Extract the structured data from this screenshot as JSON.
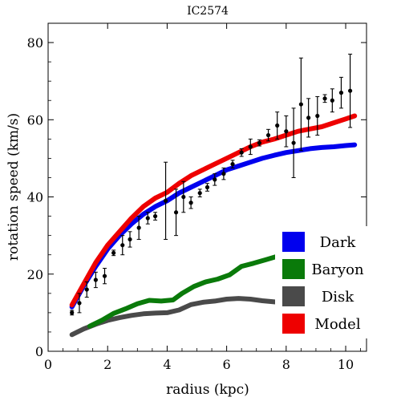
{
  "chart_data": {
    "type": "line",
    "title": "IC2574",
    "xlabel": "radius (kpc)",
    "ylabel": "rotation speed (km/s)",
    "xlim": [
      0,
      10.7
    ],
    "ylim": [
      0,
      85
    ],
    "xticks": [
      0,
      2,
      4,
      6,
      8,
      10
    ],
    "yticks": [
      0,
      20,
      40,
      60,
      80
    ],
    "legend_position": "bottom-right",
    "series": [
      {
        "name": "Dark",
        "color": "#0000ee",
        "points": [
          [
            0.8,
            11.5
          ],
          [
            1.2,
            17
          ],
          [
            1.6,
            22
          ],
          [
            2,
            26.5
          ],
          [
            2.4,
            30
          ],
          [
            2.8,
            33
          ],
          [
            3.2,
            35.5
          ],
          [
            3.6,
            37.5
          ],
          [
            4,
            39
          ],
          [
            4.4,
            41
          ],
          [
            4.8,
            42.5
          ],
          [
            5.2,
            44
          ],
          [
            5.6,
            45.5
          ],
          [
            6,
            47
          ],
          [
            6.4,
            48
          ],
          [
            6.8,
            49
          ],
          [
            7.2,
            50
          ],
          [
            7.6,
            50.8
          ],
          [
            8,
            51.5
          ],
          [
            8.4,
            52
          ],
          [
            8.8,
            52.5
          ],
          [
            9.2,
            52.8
          ],
          [
            9.6,
            53
          ],
          [
            10,
            53.3
          ],
          [
            10.3,
            53.5
          ]
        ]
      },
      {
        "name": "Baryon",
        "color": "#0a7a0a",
        "points": [
          [
            1.4,
            6.5
          ],
          [
            1.8,
            8
          ],
          [
            2.2,
            9.8
          ],
          [
            2.6,
            11
          ],
          [
            3,
            12.3
          ],
          [
            3.4,
            13.2
          ],
          [
            3.8,
            13
          ],
          [
            4.2,
            13.3
          ],
          [
            4.5,
            15
          ],
          [
            4.9,
            16.8
          ],
          [
            5.3,
            18
          ],
          [
            5.7,
            18.7
          ],
          [
            6.1,
            19.8
          ],
          [
            6.5,
            22
          ],
          [
            6.9,
            22.8
          ],
          [
            7.3,
            23.7
          ],
          [
            7.7,
            24.6
          ],
          [
            8.1,
            25.5
          ],
          [
            8.5,
            26.3
          ],
          [
            8.9,
            27
          ],
          [
            9.3,
            27.7
          ],
          [
            9.7,
            28.3
          ],
          [
            10.3,
            29.5
          ]
        ]
      },
      {
        "name": "Disk",
        "color": "#4a4a4a",
        "points": [
          [
            0.8,
            4.3
          ],
          [
            1.2,
            5.8
          ],
          [
            1.6,
            7
          ],
          [
            2,
            8
          ],
          [
            2.4,
            8.7
          ],
          [
            2.8,
            9.3
          ],
          [
            3.2,
            9.7
          ],
          [
            3.6,
            9.9
          ],
          [
            4,
            10
          ],
          [
            4.4,
            10.7
          ],
          [
            4.8,
            12.1
          ],
          [
            5.2,
            12.7
          ],
          [
            5.6,
            13
          ],
          [
            6,
            13.5
          ],
          [
            6.4,
            13.7
          ],
          [
            6.8,
            13.5
          ],
          [
            7.2,
            13.1
          ],
          [
            7.6,
            12.8
          ],
          [
            8,
            12.5
          ],
          [
            8.4,
            12.2
          ],
          [
            8.8,
            12
          ],
          [
            9.2,
            11.8
          ],
          [
            9.6,
            11.7
          ],
          [
            10,
            11.6
          ],
          [
            10.3,
            11.5
          ]
        ]
      },
      {
        "name": "Model",
        "color": "#ee0000",
        "points": [
          [
            0.8,
            12
          ],
          [
            1.2,
            17.5
          ],
          [
            1.6,
            23
          ],
          [
            2,
            27.5
          ],
          [
            2.4,
            31
          ],
          [
            2.8,
            34.5
          ],
          [
            3.2,
            37.5
          ],
          [
            3.6,
            39.7
          ],
          [
            4,
            41.2
          ],
          [
            4.4,
            43.5
          ],
          [
            4.8,
            45.5
          ],
          [
            5.2,
            47
          ],
          [
            5.6,
            48.5
          ],
          [
            6,
            50
          ],
          [
            6.4,
            51.5
          ],
          [
            6.8,
            53
          ],
          [
            7.2,
            54.2
          ],
          [
            7.6,
            55
          ],
          [
            8,
            56
          ],
          [
            8.4,
            57
          ],
          [
            8.8,
            57.6
          ],
          [
            9.2,
            58.2
          ],
          [
            9.6,
            59.2
          ],
          [
            10,
            60.2
          ],
          [
            10.3,
            61
          ]
        ]
      }
    ],
    "observations": {
      "name": "data",
      "color": "#000000",
      "points": [
        {
          "x": 0.8,
          "y": 10,
          "err": 0.6
        },
        {
          "x": 1.05,
          "y": 12.5,
          "err": 2.5
        },
        {
          "x": 1.3,
          "y": 16,
          "err": 2
        },
        {
          "x": 1.6,
          "y": 18.5,
          "err": 2
        },
        {
          "x": 1.9,
          "y": 19.5,
          "err": 2
        },
        {
          "x": 2.2,
          "y": 25.5,
          "err": 0.7
        },
        {
          "x": 2.5,
          "y": 27.5,
          "err": 2.5
        },
        {
          "x": 2.75,
          "y": 29,
          "err": 2
        },
        {
          "x": 3.05,
          "y": 32,
          "err": 3
        },
        {
          "x": 3.35,
          "y": 34.5,
          "err": 1.5
        },
        {
          "x": 3.6,
          "y": 35,
          "err": 1
        },
        {
          "x": 3.95,
          "y": 39,
          "err": 10
        },
        {
          "x": 4.3,
          "y": 36,
          "err": 6
        },
        {
          "x": 4.55,
          "y": 40,
          "err": 4
        },
        {
          "x": 4.8,
          "y": 38.5,
          "err": 1.5
        },
        {
          "x": 5.1,
          "y": 41,
          "err": 1
        },
        {
          "x": 5.35,
          "y": 42.5,
          "err": 1
        },
        {
          "x": 5.6,
          "y": 44.5,
          "err": 1.5
        },
        {
          "x": 5.9,
          "y": 46,
          "err": 1.5
        },
        {
          "x": 6.2,
          "y": 48.5,
          "err": 1
        },
        {
          "x": 6.5,
          "y": 51.5,
          "err": 1
        },
        {
          "x": 6.8,
          "y": 53,
          "err": 2
        },
        {
          "x": 7.1,
          "y": 54,
          "err": 0.8
        },
        {
          "x": 7.4,
          "y": 56,
          "err": 1.5
        },
        {
          "x": 7.7,
          "y": 58.5,
          "err": 3.5
        },
        {
          "x": 8.0,
          "y": 57,
          "err": 4
        },
        {
          "x": 8.25,
          "y": 54,
          "err": 9
        },
        {
          "x": 8.5,
          "y": 64,
          "err": 12
        },
        {
          "x": 8.75,
          "y": 60.5,
          "err": 5
        },
        {
          "x": 9.05,
          "y": 61,
          "err": 5
        },
        {
          "x": 9.3,
          "y": 65.5,
          "err": 1
        },
        {
          "x": 9.55,
          "y": 65,
          "err": 3
        },
        {
          "x": 9.85,
          "y": 67,
          "err": 4
        },
        {
          "x": 10.15,
          "y": 67.5,
          "err": 9.5
        }
      ]
    }
  }
}
